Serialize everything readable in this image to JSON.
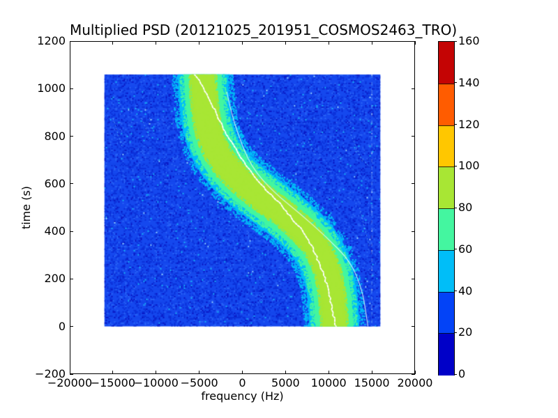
{
  "chart_data": {
    "type": "heatmap",
    "title": "Multiplied PSD (20121025_201951_COSMOS2463_TRO)",
    "xlabel": "frequency (Hz)",
    "ylabel": "time (s)",
    "xlim": [
      -20000,
      20000
    ],
    "ylim": [
      -200,
      1200
    ],
    "grid": false,
    "xticks": {
      "values": [
        -20000,
        -15000,
        -10000,
        -5000,
        0,
        5000,
        10000,
        15000,
        20000
      ],
      "labels": [
        "−20000",
        "−15000",
        "−10000",
        "−5000",
        "0",
        "5000",
        "10000",
        "15000",
        "20000"
      ]
    },
    "yticks": {
      "values": [
        -200,
        0,
        200,
        400,
        600,
        800,
        1000,
        1200
      ],
      "labels": [
        "−200",
        "0",
        "200",
        "400",
        "600",
        "800",
        "1000",
        "1200"
      ]
    },
    "data_extent": {
      "freq_hz": [
        -16000,
        16000
      ],
      "time_s": [
        0,
        1060
      ]
    },
    "colorbar": {
      "position": "right",
      "levels": [
        0,
        20,
        40,
        60,
        80,
        100,
        120,
        140,
        160
      ],
      "labels": [
        "0",
        "20",
        "40",
        "60",
        "80",
        "100",
        "120",
        "140",
        "160"
      ],
      "colors": [
        "#0000C8",
        "#0343F7",
        "#00BEF8",
        "#44F6A0",
        "#A8E634",
        "#FFC700",
        "#FF5C00",
        "#C40404"
      ]
    },
    "background_noise": {
      "mean_value": 30,
      "base_color": "#1548EE",
      "dark_speckle": "#0A2FD8",
      "darker_speckle": "#0912C0",
      "light_speckle": "#2B66F7",
      "cyan_speckle": "#18B4F5",
      "bright_speckle": "#9AD8FF"
    },
    "band_layers": [
      {
        "name": "outer",
        "color": "#00BEF8",
        "value_range": [
          40,
          60
        ],
        "halfwidth_hz": 2900
      },
      {
        "name": "mid",
        "color": "#44F6A0",
        "value_range": [
          60,
          80
        ],
        "halfwidth_hz": 2180
      },
      {
        "name": "core",
        "color": "#A8E634",
        "value_range": [
          80,
          100
        ],
        "halfwidth_hz": 1330
      }
    ],
    "band_center_track": [
      [
        1060,
        -4570
      ],
      [
        1000,
        -4510
      ],
      [
        950,
        -4420
      ],
      [
        900,
        -4280
      ],
      [
        850,
        -4060
      ],
      [
        800,
        -3710
      ],
      [
        750,
        -3170
      ],
      [
        700,
        -2380
      ],
      [
        650,
        -1270
      ],
      [
        600,
        190
      ],
      [
        550,
        1930
      ],
      [
        500,
        3800
      ],
      [
        450,
        5580
      ],
      [
        400,
        7100
      ],
      [
        350,
        8290
      ],
      [
        300,
        9140
      ],
      [
        250,
        9720
      ],
      [
        200,
        10100
      ],
      [
        150,
        10340
      ],
      [
        100,
        10500
      ],
      [
        50,
        10600
      ],
      [
        0,
        10660
      ]
    ],
    "peak_track_white": [
      [
        1062,
        -5600
      ],
      [
        1045,
        -5210
      ],
      [
        954,
        -3840
      ],
      [
        854,
        -2470
      ],
      [
        767,
        -1170
      ],
      [
        690,
        200
      ],
      [
        611,
        1820
      ],
      [
        553,
        3430
      ],
      [
        485,
        5050
      ],
      [
        415,
        6670
      ],
      [
        339,
        8040
      ],
      [
        239,
        9250
      ],
      [
        143,
        10060
      ],
      [
        46,
        10550
      ],
      [
        0,
        10870
      ]
    ],
    "model_track_thin": [
      [
        985,
        -1800
      ],
      [
        919,
        -1410
      ],
      [
        817,
        -600
      ],
      [
        671,
        1010
      ],
      [
        563,
        3680
      ],
      [
        475,
        6670
      ],
      [
        379,
        9660
      ],
      [
        271,
        12600
      ],
      [
        150,
        13900
      ],
      [
        60,
        14300
      ],
      [
        0,
        14550
      ]
    ],
    "artifacts": {
      "vertical_line_hz": 15000,
      "streaks": [
        [
          -14990,
          875,
          -13940,
          758
        ],
        [
          -11680,
          875,
          -10710,
          790
        ],
        [
          7640,
          778,
          8520,
          720
        ],
        [
          12570,
          807,
          13940,
          690
        ],
        [
          13130,
          737,
          14750,
          670
        ],
        [
          13580,
          500,
          14700,
          335
        ]
      ]
    }
  }
}
